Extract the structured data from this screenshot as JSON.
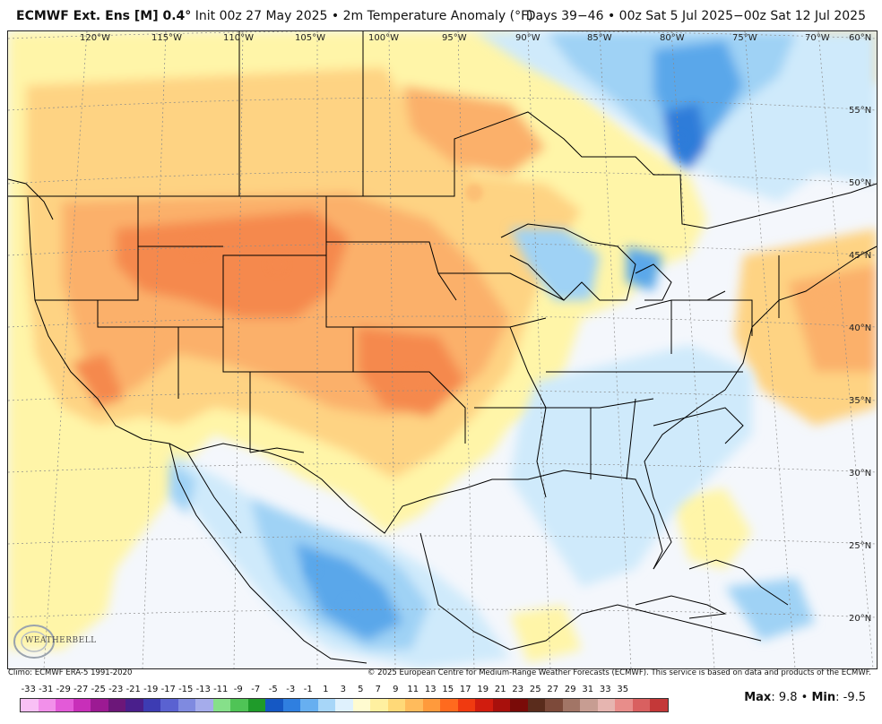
{
  "header": {
    "model": "ECMWF Ext. Ens [M] 0.4",
    "deg": "°",
    "init": "Init 00z 27 May 2025",
    "bullet": "•",
    "product": "2m Temperature Anomaly (°F)",
    "period": "Days 39−46 • 00z Sat 5 Jul 2025−00z Sat 12 Jul 2025"
  },
  "map": {
    "lon_labels": [
      "120°W",
      "115°W",
      "110°W",
      "105°W",
      "100°W",
      "95°W",
      "90°W",
      "85°W",
      "80°W",
      "75°W",
      "70°W"
    ],
    "lat_labels": [
      "60°N",
      "55°N",
      "50°N",
      "45°N",
      "40°N",
      "35°N",
      "30°N",
      "25°N",
      "20°N"
    ],
    "colors": {
      "ocean_neutral": "#f4f7fc",
      "warm_light": "#fff5a8",
      "warm_mid": "#fed383",
      "warm_orange": "#fbb06a",
      "warm_deep": "#f5894d",
      "cool_light": "#cfeafb",
      "cool_mid": "#9fd2f5",
      "cool_deep": "#5aa7ea",
      "cool_strong": "#2e7bd9",
      "border": "#000000"
    }
  },
  "logo": {
    "name": "WEATHERBELL"
  },
  "footer": {
    "climo": "Climo: ECMWF ERA-5 1991-2020",
    "copyright": "© 2025 European Centre for Medium-Range Weather Forecasts (ECMWF). This service is based on data and products of the ECMWF."
  },
  "scale": {
    "labels": [
      "-33",
      "-31",
      "-29",
      "-27",
      "-25",
      "-23",
      "-21",
      "-19",
      "-17",
      "-15",
      "-13",
      "-11",
      "-9",
      "-7",
      "-5",
      "-3",
      "-1",
      "1",
      "3",
      "5",
      "7",
      "9",
      "11",
      "13",
      "15",
      "17",
      "19",
      "21",
      "23",
      "25",
      "27",
      "29",
      "31",
      "33",
      "35"
    ],
    "colors": [
      "#f9c0f5",
      "#f290ea",
      "#e35ad8",
      "#c82fb9",
      "#9c1a93",
      "#6c1779",
      "#4a1f8c",
      "#3d3cb3",
      "#5a62d1",
      "#7f8ae0",
      "#a5aceb",
      "#86e08a",
      "#4fc456",
      "#1f9b2a",
      "#1558c4",
      "#2f7fe0",
      "#67aff0",
      "#a7d6f8",
      "#dff1fd",
      "#fffbd0",
      "#fff0a0",
      "#ffd978",
      "#ffbb5c",
      "#ff9a3c",
      "#ff6a1e",
      "#f03a10",
      "#d11c0e",
      "#a8100c",
      "#7a0b08",
      "#5a2c1c",
      "#7d4a3a",
      "#a27566",
      "#c79d92",
      "#e6b5b0",
      "#e88d8a",
      "#d96060",
      "#c43838"
    ]
  },
  "stats": {
    "max_label": "Max",
    "max_value": ": 9.8",
    "sep": " • ",
    "min_label": "Min",
    "min_value": ": -9.5"
  }
}
